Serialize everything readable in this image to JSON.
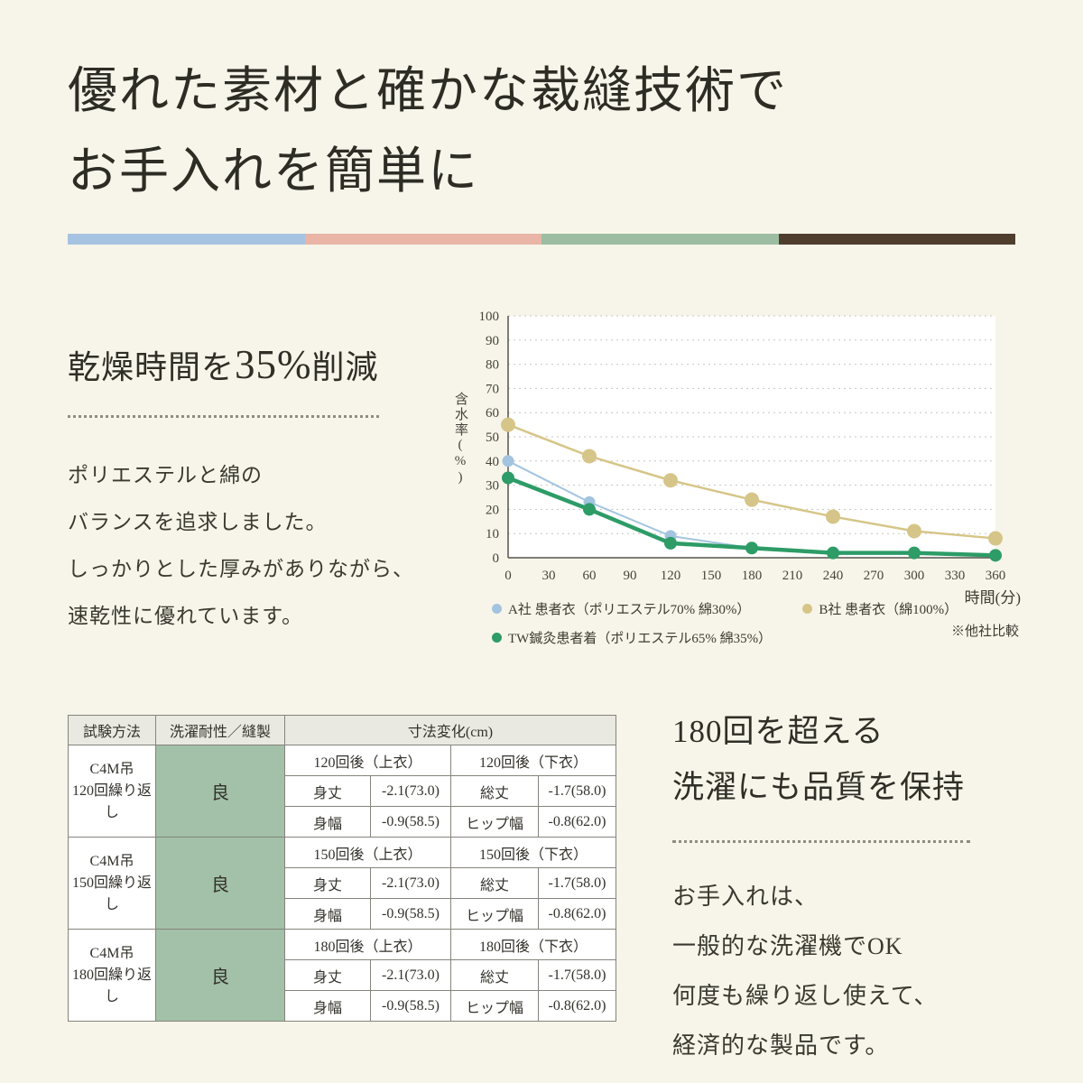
{
  "page": {
    "background": "#f7f5e9",
    "title_line1": "優れた素材と確かな裁縫技術で",
    "title_line2": "お手入れを簡単に"
  },
  "divider_colors": [
    "#a6c4e2",
    "#e8b5a6",
    "#9cbda1",
    "#4f3d2e"
  ],
  "left_section": {
    "heading_prefix": "乾燥時間を",
    "heading_em": "35%",
    "heading_suffix": "削減",
    "paragraph_lines": [
      "ポリエステルと綿の",
      "バランスを追求しました。",
      "しっかりとした厚みがありながら、",
      "速乾性に優れています。"
    ]
  },
  "chart_data": {
    "type": "line",
    "ylabel": "含水率(%)",
    "xlabel": "時間(分)",
    "note": "※他社比較",
    "xlim": [
      0,
      360
    ],
    "ylim": [
      0,
      100
    ],
    "x_ticks": [
      0,
      30,
      60,
      90,
      120,
      150,
      180,
      210,
      240,
      270,
      300,
      330,
      360
    ],
    "y_ticks": [
      0,
      10,
      20,
      30,
      40,
      50,
      60,
      70,
      80,
      90,
      100
    ],
    "grid": "horizontal-dotted",
    "legend_position": "bottom",
    "x": [
      0,
      60,
      120,
      180,
      240,
      300,
      360
    ],
    "series": [
      {
        "name": "A社 患者衣（ポリエステル70% 綿30%）",
        "color": "#a3c4e0",
        "line_width": 2,
        "dot_radius": 6.5,
        "values": [
          40,
          23,
          9,
          4,
          2,
          2,
          1
        ]
      },
      {
        "name": "B社 患者衣（綿100%）",
        "color": "#d6c588",
        "line_width": 2.5,
        "dot_radius": 8,
        "values": [
          55,
          42,
          32,
          24,
          17,
          11,
          8
        ]
      },
      {
        "name": "TW鍼灸患者着（ポリエステル65% 綿35%）",
        "color": "#2d9c67",
        "line_width": 4.5,
        "dot_radius": 7,
        "values": [
          33,
          20,
          6,
          4,
          2,
          2,
          1
        ]
      }
    ]
  },
  "table": {
    "headers": [
      "試験方法",
      "洗濯耐性／縫製",
      "寸法変化(cm)"
    ],
    "rating_color": "#a2c1a8",
    "groups": [
      {
        "method_line1": "C4M吊",
        "method_line2": "120回繰り返し",
        "rating": "良",
        "sub_headers": [
          "120回後（上衣）",
          "120回後（下衣）"
        ],
        "rows": [
          [
            "身丈",
            "-2.1(73.0)",
            "総丈",
            "-1.7(58.0)"
          ],
          [
            "身幅",
            "-0.9(58.5)",
            "ヒップ幅",
            "-0.8(62.0)"
          ]
        ]
      },
      {
        "method_line1": "C4M吊",
        "method_line2": "150回繰り返し",
        "rating": "良",
        "sub_headers": [
          "150回後（上衣）",
          "150回後（下衣）"
        ],
        "rows": [
          [
            "身丈",
            "-2.1(73.0)",
            "総丈",
            "-1.7(58.0)"
          ],
          [
            "身幅",
            "-0.9(58.5)",
            "ヒップ幅",
            "-0.8(62.0)"
          ]
        ]
      },
      {
        "method_line1": "C4M吊",
        "method_line2": "180回繰り返し",
        "rating": "良",
        "sub_headers": [
          "180回後（上衣）",
          "180回後（下衣）"
        ],
        "rows": [
          [
            "身丈",
            "-2.1(73.0)",
            "総丈",
            "-1.7(58.0)"
          ],
          [
            "身幅",
            "-0.9(58.5)",
            "ヒップ幅",
            "-0.8(62.0)"
          ]
        ]
      }
    ]
  },
  "right_section": {
    "heading_line1": "180回を超える",
    "heading_line2": "洗濯にも品質を保持",
    "paragraph_lines": [
      "お手入れは、",
      "一般的な洗濯機でOK",
      "何度も繰り返し使えて、",
      "経済的な製品です。"
    ]
  }
}
